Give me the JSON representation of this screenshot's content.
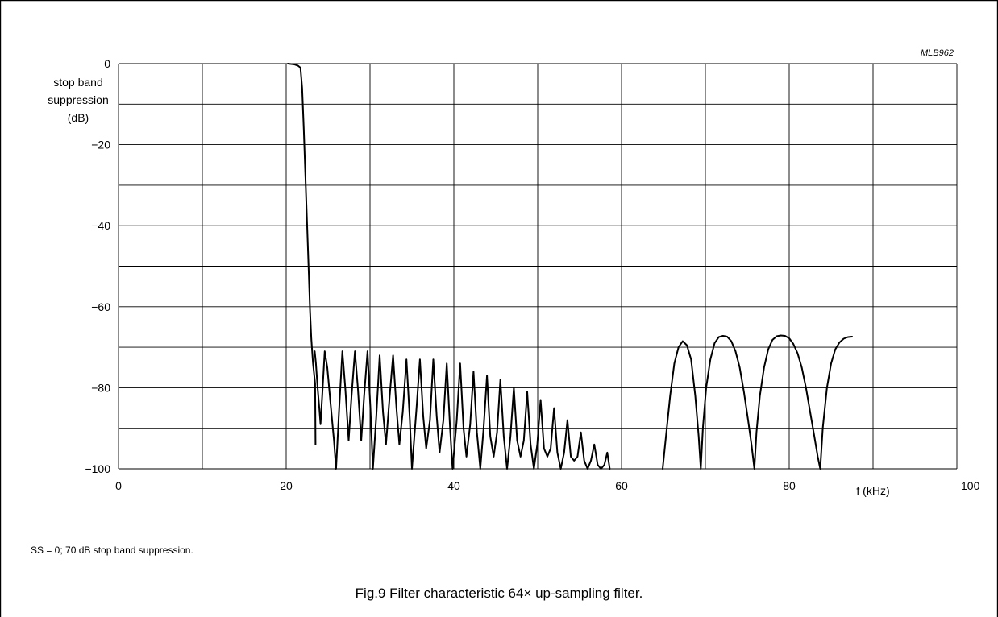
{
  "figure": {
    "code": "MLB962",
    "note": "SS = 0; 70 dB stop band suppression.",
    "caption": "Fig.9  Filter characteristic 64× up-sampling filter."
  },
  "chart_data": {
    "type": "line",
    "title": "",
    "xlabel": "f  (kHz)",
    "ylabel_lines": [
      "stop band",
      "suppression",
      "(dB)"
    ],
    "xlim": [
      0,
      100
    ],
    "ylim": [
      -100,
      0
    ],
    "x_ticks": [
      0,
      20,
      40,
      60,
      80,
      100
    ],
    "y_ticks": [
      0,
      -20,
      -40,
      -60,
      -80,
      -100
    ],
    "y_tick_labels": [
      "0",
      "−20",
      "−40",
      "−60",
      "−80",
      "−100"
    ],
    "grid": true,
    "x_grid_step": 10,
    "y_grid_step": 10,
    "series": [
      {
        "segments": [
          [
            [
              20.2,
              0
            ],
            [
              20.6,
              -0.1
            ],
            [
              21.0,
              -0.2
            ],
            [
              21.4,
              -0.5
            ],
            [
              21.7,
              -1
            ],
            [
              21.9,
              -6
            ],
            [
              22.1,
              -16
            ],
            [
              22.3,
              -28
            ],
            [
              22.5,
              -40
            ],
            [
              22.7,
              -52
            ],
            [
              22.85,
              -61
            ],
            [
              23.0,
              -68
            ],
            [
              23.2,
              -74
            ],
            [
              23.45,
              -79
            ],
            [
              23.5,
              -94
            ]
          ],
          [
            [
              23.4,
              -71
            ],
            [
              23.55,
              -74
            ],
            [
              23.75,
              -80
            ],
            [
              23.95,
              -85
            ],
            [
              24.1,
              -89
            ],
            [
              24.3,
              -82
            ],
            [
              24.6,
              -71
            ],
            [
              24.9,
              -75
            ],
            [
              25.3,
              -84
            ],
            [
              25.7,
              -93
            ],
            [
              25.95,
              -100
            ],
            [
              26.3,
              -86
            ],
            [
              26.7,
              -71
            ],
            [
              27.05,
              -80
            ],
            [
              27.45,
              -93
            ],
            [
              27.8,
              -82
            ],
            [
              28.2,
              -71
            ],
            [
              28.55,
              -80
            ],
            [
              28.95,
              -93
            ],
            [
              29.3,
              -82
            ],
            [
              29.7,
              -71
            ],
            [
              30.05,
              -85
            ],
            [
              30.35,
              -100
            ],
            [
              30.75,
              -87
            ],
            [
              31.15,
              -72
            ],
            [
              31.55,
              -86
            ],
            [
              31.9,
              -94
            ],
            [
              32.35,
              -82
            ],
            [
              32.75,
              -72
            ],
            [
              33.15,
              -85
            ],
            [
              33.5,
              -94
            ],
            [
              33.9,
              -86
            ],
            [
              34.35,
              -73
            ],
            [
              34.75,
              -88
            ],
            [
              35.0,
              -100
            ],
            [
              35.55,
              -85
            ],
            [
              35.95,
              -73
            ],
            [
              36.35,
              -87
            ],
            [
              36.7,
              -95
            ],
            [
              37.15,
              -88
            ],
            [
              37.55,
              -73
            ],
            [
              37.95,
              -87
            ],
            [
              38.3,
              -96
            ],
            [
              38.75,
              -88
            ],
            [
              39.15,
              -74
            ],
            [
              39.55,
              -90
            ],
            [
              39.85,
              -100
            ],
            [
              40.35,
              -88
            ],
            [
              40.75,
              -74
            ],
            [
              41.15,
              -90
            ],
            [
              41.5,
              -97
            ],
            [
              41.95,
              -89
            ],
            [
              42.35,
              -76
            ],
            [
              42.75,
              -91
            ],
            [
              43.15,
              -100
            ],
            [
              43.55,
              -90
            ],
            [
              43.95,
              -77
            ],
            [
              44.35,
              -92
            ],
            [
              44.75,
              -97
            ],
            [
              45.15,
              -91
            ],
            [
              45.55,
              -78
            ],
            [
              45.95,
              -92
            ],
            [
              46.35,
              -100
            ],
            [
              46.75,
              -92
            ],
            [
              47.15,
              -80
            ],
            [
              47.55,
              -93
            ],
            [
              47.95,
              -97
            ],
            [
              48.35,
              -93
            ],
            [
              48.75,
              -81
            ],
            [
              49.15,
              -94
            ],
            [
              49.55,
              -100
            ],
            [
              49.95,
              -94
            ],
            [
              50.35,
              -83
            ],
            [
              50.75,
              -95
            ],
            [
              51.15,
              -97
            ],
            [
              51.55,
              -95
            ],
            [
              51.95,
              -85
            ],
            [
              52.35,
              -96
            ],
            [
              52.75,
              -100
            ],
            [
              53.15,
              -96
            ],
            [
              53.55,
              -88
            ],
            [
              53.95,
              -97
            ],
            [
              54.35,
              -98
            ],
            [
              54.75,
              -97
            ],
            [
              55.15,
              -91
            ],
            [
              55.55,
              -98
            ],
            [
              55.95,
              -100
            ],
            [
              56.35,
              -98
            ],
            [
              56.75,
              -94
            ],
            [
              57.15,
              -99
            ],
            [
              57.55,
              -100
            ],
            [
              57.95,
              -99
            ],
            [
              58.3,
              -96
            ],
            [
              58.6,
              -100
            ]
          ],
          [
            [
              64.9,
              -100
            ],
            [
              65.3,
              -92
            ],
            [
              65.8,
              -82
            ],
            [
              66.3,
              -74
            ],
            [
              66.8,
              -70
            ],
            [
              67.3,
              -68.5
            ],
            [
              67.8,
              -69.5
            ],
            [
              68.3,
              -73
            ],
            [
              68.8,
              -82
            ],
            [
              69.2,
              -92
            ],
            [
              69.45,
              -100
            ],
            [
              69.7,
              -90
            ],
            [
              70.1,
              -80
            ],
            [
              70.6,
              -73
            ],
            [
              71.1,
              -69
            ],
            [
              71.6,
              -67.5
            ],
            [
              72.1,
              -67.2
            ],
            [
              72.6,
              -67.4
            ],
            [
              73.1,
              -68.5
            ],
            [
              73.6,
              -71
            ],
            [
              74.1,
              -75
            ],
            [
              74.6,
              -81
            ],
            [
              75.1,
              -88
            ],
            [
              75.5,
              -94
            ],
            [
              75.85,
              -100
            ],
            [
              76.1,
              -91
            ],
            [
              76.5,
              -82
            ],
            [
              77.0,
              -75
            ],
            [
              77.5,
              -70.5
            ],
            [
              78.0,
              -68.2
            ],
            [
              78.5,
              -67.3
            ],
            [
              79.0,
              -67.1
            ],
            [
              79.5,
              -67.2
            ],
            [
              80.0,
              -67.8
            ],
            [
              80.5,
              -69.2
            ],
            [
              81.0,
              -71.5
            ],
            [
              81.5,
              -75
            ],
            [
              82.0,
              -80
            ],
            [
              82.5,
              -86
            ],
            [
              83.0,
              -92
            ],
            [
              83.4,
              -97
            ],
            [
              83.7,
              -100
            ],
            [
              84.0,
              -90
            ],
            [
              84.5,
              -80
            ],
            [
              85.0,
              -74
            ],
            [
              85.5,
              -70.5
            ],
            [
              86.0,
              -68.8
            ],
            [
              86.5,
              -67.9
            ],
            [
              87.0,
              -67.5
            ],
            [
              87.5,
              -67.4
            ]
          ]
        ]
      }
    ]
  }
}
